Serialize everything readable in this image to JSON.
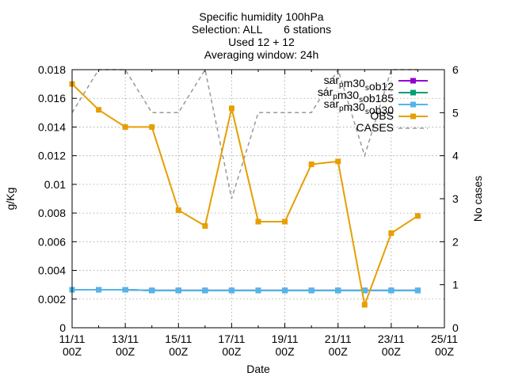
{
  "chart_data": {
    "type": "line",
    "title_lines": [
      "Specific humidity 100hPa",
      "Selection: ALL       6 stations",
      "Used 12 + 12",
      "Averaging window: 24h"
    ],
    "xlabel": "Date",
    "ylabel": "g/Kg",
    "y2label": "No cases",
    "x_ticks": [
      {
        "line1": "11/11",
        "line2": "00Z"
      },
      {
        "line1": "13/11",
        "line2": "00Z"
      },
      {
        "line1": "15/11",
        "line2": "00Z"
      },
      {
        "line1": "17/11",
        "line2": "00Z"
      },
      {
        "line1": "19/11",
        "line2": "00Z"
      },
      {
        "line1": "21/11",
        "line2": "00Z"
      },
      {
        "line1": "23/11",
        "line2": "00Z"
      },
      {
        "line1": "25/11",
        "line2": "00Z"
      }
    ],
    "y_ticks": [
      "0",
      "0.002",
      "0.004",
      "0.006",
      "0.008",
      "0.01",
      "0.012",
      "0.014",
      "0.016",
      "0.018"
    ],
    "y2_ticks": [
      "0",
      "1",
      "2",
      "3",
      "4",
      "5",
      "6"
    ],
    "ylim": [
      0,
      0.018
    ],
    "y2lim": [
      0,
      6
    ],
    "x_days": [
      "11/11",
      "12/11",
      "13/11",
      "14/11",
      "15/11",
      "16/11",
      "17/11",
      "18/11",
      "19/11",
      "20/11",
      "21/11",
      "22/11",
      "23/11",
      "24/11"
    ],
    "xlim_days": [
      0,
      14
    ],
    "grid": true,
    "legend_position": "top-right",
    "series": [
      {
        "name": "sar_pm30_sob12",
        "legend_main": "sar",
        "legend_sub1": "p",
        "legend_mid": "m30",
        "legend_sub2": "s",
        "legend_end": "ob12",
        "axis": "y",
        "color": "#9400d3",
        "marker": "square",
        "values": [
          0.00265,
          0.00265,
          0.00265,
          0.0026,
          0.0026,
          0.0026,
          0.0026,
          0.0026,
          0.0026,
          0.0026,
          0.0026,
          0.0026,
          0.0026,
          0.0026
        ]
      },
      {
        "name": "sar_pm30_sob185",
        "legend_main": "sar",
        "legend_sub1": "p",
        "legend_mid": "m30",
        "legend_sub2": "s",
        "legend_end": "ob185",
        "axis": "y",
        "color": "#009e73",
        "marker": "square",
        "values": [
          0.00265,
          0.00265,
          0.00265,
          0.0026,
          0.0026,
          0.0026,
          0.0026,
          0.0026,
          0.0026,
          0.0026,
          0.0026,
          0.0026,
          0.0026,
          0.0026
        ]
      },
      {
        "name": "sar_pm30_sob30",
        "legend_main": "sar",
        "legend_sub1": "p",
        "legend_mid": "m30",
        "legend_sub2": "s",
        "legend_end": "ob30",
        "axis": "y",
        "color": "#56b4e9",
        "marker": "square",
        "values": [
          0.00265,
          0.00265,
          0.00265,
          0.0026,
          0.0026,
          0.0026,
          0.0026,
          0.0026,
          0.0026,
          0.0026,
          0.0026,
          0.0026,
          0.0026,
          0.0026
        ]
      },
      {
        "name": "OBS",
        "legend_main": "OBS",
        "axis": "y",
        "color": "#e69f00",
        "marker": "square",
        "values": [
          0.017,
          0.0152,
          0.014,
          0.014,
          0.0082,
          0.0071,
          0.0153,
          0.0074,
          0.0074,
          0.0114,
          0.0116,
          0.0016,
          0.0066,
          0.0078
        ]
      },
      {
        "name": "CASES",
        "legend_main": "CASES",
        "axis": "y2",
        "color": "#999999",
        "dashed": true,
        "values": [
          5,
          6,
          6,
          5,
          5,
          6,
          3,
          5,
          5,
          5,
          6,
          4,
          6,
          6
        ]
      }
    ]
  }
}
